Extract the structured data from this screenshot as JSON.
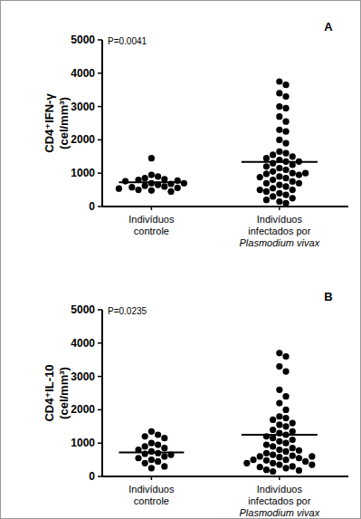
{
  "chart_data": [
    {
      "type": "scatter",
      "title": "A",
      "annotation": "P=0.0041",
      "ylabel": [
        "CD4⁺IFN-γ",
        "(cel/mm³)"
      ],
      "categories": [
        "Indivíduos controle",
        "Indivíduos infectados por Plasmodium vivax"
      ],
      "values": [
        [
          1450,
          950,
          900,
          850,
          820,
          800,
          780,
          760,
          700,
          680,
          650,
          620,
          600,
          580,
          560,
          540,
          500,
          480,
          450,
          700
        ],
        [
          3750,
          3650,
          3400,
          3300,
          3000,
          2950,
          2700,
          2550,
          2300,
          2250,
          2000,
          1900,
          1650,
          1600,
          1550,
          1500,
          1450,
          1400,
          1350,
          1300,
          1250,
          1200,
          1150,
          1100,
          1050,
          1000,
          980,
          950,
          900,
          880,
          850,
          800,
          750,
          700,
          650,
          600,
          550,
          500,
          450,
          400,
          350,
          300,
          250,
          200,
          150,
          100,
          1350,
          1000,
          700,
          500
        ]
      ],
      "mean": [
        730,
        1340
      ],
      "color": "#000000",
      "marker": "circle",
      "ylim": [
        0,
        5000
      ],
      "yticks": [
        0,
        1000,
        2000,
        3000,
        4000,
        5000
      ],
      "grid": false
    },
    {
      "type": "scatter",
      "title": "B",
      "annotation": "P=0.0235",
      "ylabel": [
        "CD4⁺IL-10",
        "(cel/mm³)"
      ],
      "categories": [
        "Indivíduos controle",
        "Indivíduos infectados por Plasmodium vivax"
      ],
      "values": [
        [
          1350,
          1250,
          1200,
          1150,
          1000,
          950,
          900,
          850,
          800,
          750,
          700,
          680,
          650,
          600,
          550,
          500,
          450,
          400,
          300,
          250
        ],
        [
          3700,
          3600,
          3300,
          3150,
          2600,
          2400,
          2200,
          2000,
          1800,
          1750,
          1700,
          1600,
          1550,
          1500,
          1400,
          1350,
          1300,
          1250,
          1200,
          1150,
          1100,
          1050,
          1000,
          950,
          900,
          850,
          800,
          780,
          750,
          700,
          650,
          620,
          600,
          580,
          550,
          500,
          480,
          450,
          400,
          350,
          300,
          280,
          250,
          200,
          180,
          150,
          600,
          500,
          400,
          350
        ]
      ],
      "mean": [
        720,
        1250
      ],
      "color": "#000000",
      "marker": "circle",
      "ylim": [
        0,
        5000
      ],
      "yticks": [
        0,
        1000,
        2000,
        3000,
        4000,
        5000
      ],
      "grid": false
    }
  ]
}
